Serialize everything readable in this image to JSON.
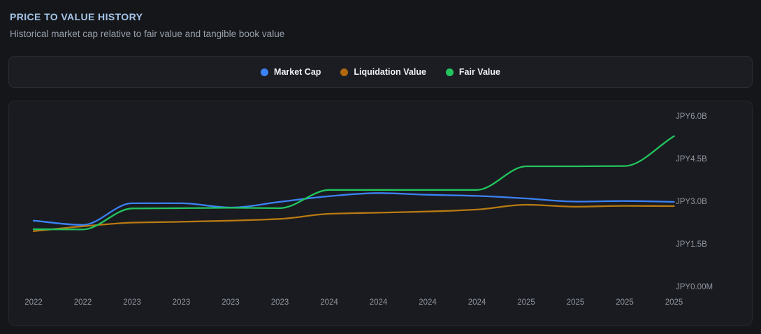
{
  "page": {
    "title": "PRICE TO VALUE HISTORY",
    "subtitle": "Historical market cap relative to fair value and tangible book value"
  },
  "legend": {
    "items": [
      {
        "label": "Market Cap",
        "color": "#3b82f6"
      },
      {
        "label": "Liquidation Value",
        "color": "#b0680e"
      },
      {
        "label": "Fair Value",
        "color": "#22c55e"
      }
    ]
  },
  "chart_data": {
    "type": "line",
    "title": "Price to Value History",
    "unit": "JPY",
    "categories": [
      "2022",
      "2022",
      "2023",
      "2023",
      "2023",
      "2023",
      "2024",
      "2024",
      "2024",
      "2024",
      "2025",
      "2025",
      "2025",
      "2025"
    ],
    "series": [
      {
        "name": "Market Cap",
        "color": "#3b82f6",
        "values": [
          2.34,
          2.19,
          2.95,
          2.95,
          2.8,
          3.0,
          3.2,
          3.31,
          3.25,
          3.21,
          3.12,
          3.01,
          3.03,
          3.0
        ]
      },
      {
        "name": "Liquidation Value",
        "color": "#b97a12",
        "values": [
          1.97,
          2.14,
          2.27,
          2.3,
          2.34,
          2.4,
          2.58,
          2.62,
          2.66,
          2.73,
          2.9,
          2.83,
          2.86,
          2.85
        ]
      },
      {
        "name": "Fair Value",
        "color": "#22c55e",
        "values": [
          2.04,
          2.03,
          2.77,
          2.78,
          2.79,
          2.78,
          3.42,
          3.42,
          3.42,
          3.42,
          4.25,
          4.25,
          4.26,
          5.31
        ]
      }
    ],
    "y_ticks": [
      {
        "label": "JPY6.0B",
        "value": 6.0
      },
      {
        "label": "JPY4.5B",
        "value": 4.5
      },
      {
        "label": "JPY3.0B",
        "value": 3.0
      },
      {
        "label": "JPY1.5B",
        "value": 1.5
      },
      {
        "label": "JPY0.00M",
        "value": 0
      }
    ],
    "ylim": [
      0,
      6.6
    ],
    "grid": false,
    "legend_position": "top"
  }
}
